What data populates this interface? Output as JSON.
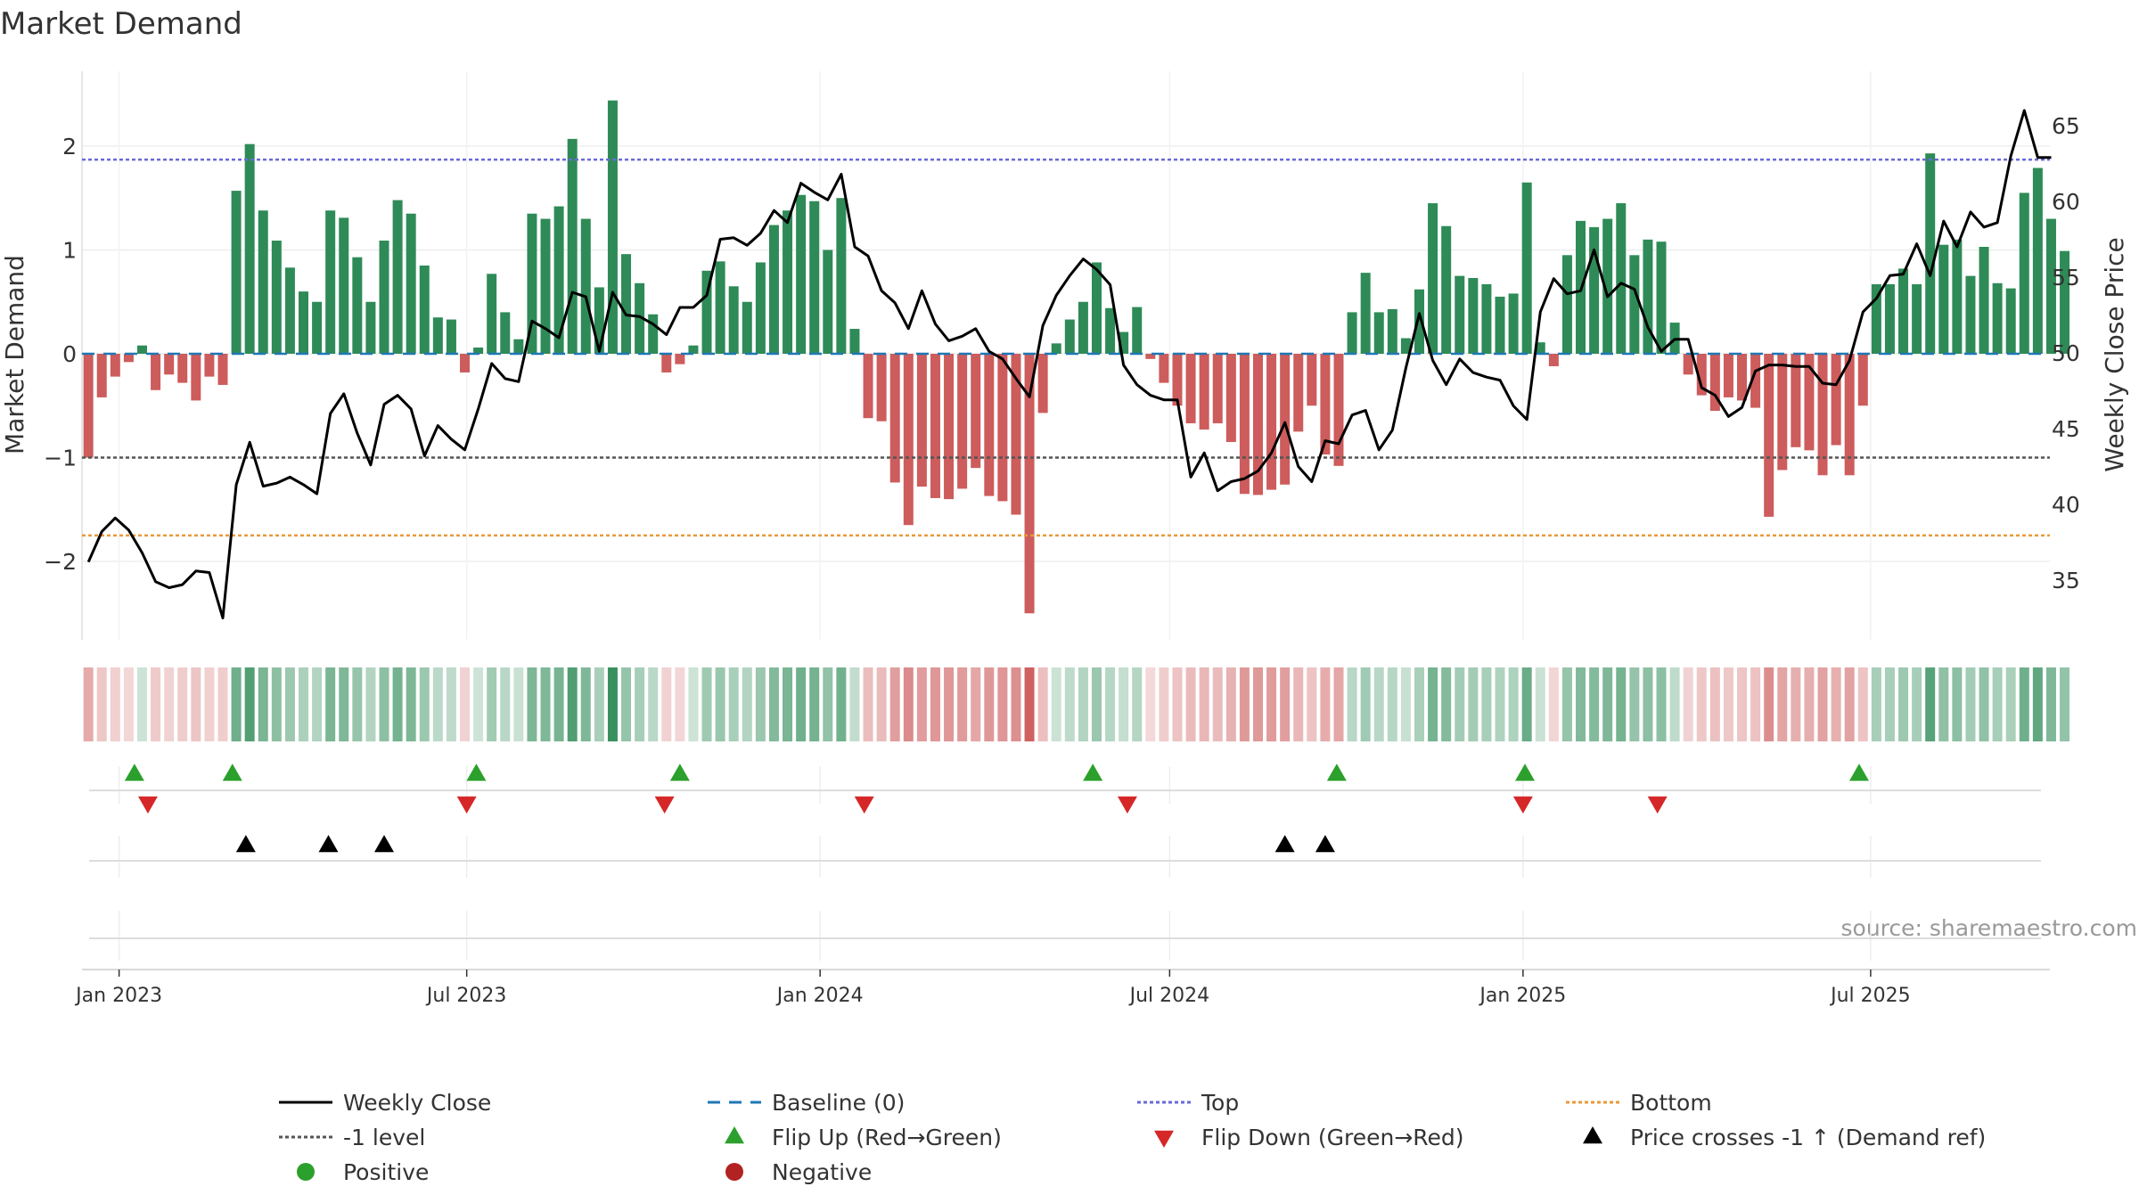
{
  "chart_data": {
    "type": "bar+line",
    "title": "Market Demand",
    "ylabel": "Market Demand",
    "y2label": "Weekly Close Price",
    "source": "source: sharemaestro.com",
    "ylim": [
      -2.75,
      2.75
    ],
    "y2lim": [
      31.5,
      69
    ],
    "yticks": [
      "2",
      "1",
      "0",
      "−1",
      "−2"
    ],
    "yticks_values": [
      2,
      1,
      0,
      -1,
      -2
    ],
    "y2ticks": [
      "65",
      "60",
      "55",
      "50",
      "45",
      "40",
      "35"
    ],
    "y2ticks_values": [
      65,
      60,
      55,
      50,
      45,
      40,
      35
    ],
    "date_start": "2022-12-16",
    "week_days": 7,
    "x_min": "2022-12-15",
    "x_max": "2025-09-30",
    "xticks": [
      {
        "label": "Jan 2023",
        "date": "2023-01-01"
      },
      {
        "label": "Jul 2023",
        "date": "2023-07-01"
      },
      {
        "label": "Jan 2024",
        "date": "2024-01-01"
      },
      {
        "label": "Jul 2024",
        "date": "2024-07-01"
      },
      {
        "label": "Jan 2025",
        "date": "2025-01-01"
      },
      {
        "label": "Jul 2025",
        "date": "2025-07-01"
      }
    ],
    "reference_lines": {
      "top": 1.87,
      "bottom": -1.75,
      "minus_one": -1.0,
      "baseline": 0
    },
    "colors": {
      "positive": "#2e8b57",
      "negative": "#cd5c5c",
      "price": "#000000",
      "top": "#6a6ad8",
      "bottom": "#e89a3c",
      "minus_one": "#555555",
      "baseline": "#1f77b4",
      "flip_up": "#2ca02c",
      "flip_down": "#d62728",
      "cross": "#000000",
      "dot_positive": "#2ca02c",
      "dot_negative": "#b22222"
    },
    "series": [
      {
        "name": "Market Demand",
        "type": "bar",
        "values": [
          -1.0,
          -0.42,
          -0.22,
          -0.08,
          0.08,
          -0.35,
          -0.2,
          -0.28,
          -0.45,
          -0.22,
          -0.3,
          1.57,
          2.02,
          1.38,
          1.09,
          0.83,
          0.6,
          0.5,
          1.38,
          1.31,
          0.93,
          0.5,
          1.09,
          1.48,
          1.35,
          0.85,
          0.35,
          0.33,
          -0.18,
          0.06,
          0.77,
          0.4,
          0.14,
          1.35,
          1.3,
          1.42,
          2.07,
          1.3,
          0.64,
          2.44,
          0.96,
          0.68,
          0.38,
          -0.18,
          -0.1,
          0.08,
          0.8,
          0.89,
          0.65,
          0.5,
          0.88,
          1.24,
          1.38,
          1.53,
          1.47,
          1.0,
          1.5,
          0.24,
          -0.62,
          -0.65,
          -1.24,
          -1.65,
          -1.28,
          -1.39,
          -1.4,
          -1.3,
          -1.1,
          -1.37,
          -1.42,
          -1.55,
          -2.5,
          -0.57,
          0.1,
          0.33,
          0.5,
          0.88,
          0.44,
          0.21,
          0.45,
          -0.05,
          -0.28,
          -0.5,
          -0.67,
          -0.73,
          -0.67,
          -0.85,
          -1.35,
          -1.36,
          -1.31,
          -1.26,
          -0.75,
          -0.5,
          -0.97,
          -1.08,
          0.4,
          0.78,
          0.4,
          0.43,
          0.15,
          0.62,
          1.45,
          1.23,
          0.75,
          0.73,
          0.67,
          0.55,
          0.58,
          1.65,
          0.11,
          -0.12,
          0.95,
          1.28,
          1.22,
          1.3,
          1.45,
          0.95,
          1.1,
          1.08,
          0.3,
          -0.2,
          -0.4,
          -0.55,
          -0.42,
          -0.45,
          -0.52,
          -1.57,
          -1.12,
          -0.9,
          -0.93,
          -1.17,
          -0.88,
          -1.17,
          -0.5,
          0.67,
          0.67,
          0.82,
          0.67,
          1.93,
          1.05,
          1.1,
          0.75,
          1.03,
          0.68,
          0.63,
          1.55,
          1.79,
          1.3,
          0.99
        ]
      },
      {
        "name": "Weekly Close",
        "type": "line",
        "axis": "right",
        "values": [
          36.2,
          38.2,
          39.1,
          38.3,
          36.8,
          34.9,
          34.5,
          34.7,
          35.6,
          35.5,
          32.5,
          41.3,
          44.1,
          41.2,
          41.4,
          41.8,
          41.3,
          40.7,
          46.0,
          47.3,
          44.7,
          42.6,
          46.6,
          47.2,
          46.3,
          43.2,
          45.2,
          44.3,
          43.6,
          46.3,
          49.3,
          48.3,
          48.1,
          52.1,
          51.6,
          51.0,
          54.0,
          53.7,
          50.1,
          54.0,
          52.5,
          52.4,
          51.9,
          51.2,
          53.0,
          53.0,
          53.8,
          57.5,
          57.6,
          57.1,
          57.9,
          59.4,
          58.6,
          61.2,
          60.6,
          60.1,
          61.8,
          57.0,
          56.4,
          54.1,
          53.3,
          51.6,
          54.1,
          51.9,
          50.8,
          51.1,
          51.6,
          50.1,
          49.6,
          48.3,
          47.1,
          51.8,
          53.8,
          55.1,
          56.2,
          55.5,
          54.5,
          49.2,
          47.9,
          47.2,
          46.9,
          46.9,
          41.8,
          43.4,
          40.9,
          41.5,
          41.7,
          42.2,
          43.4,
          45.4,
          42.5,
          41.5,
          44.2,
          44.0,
          45.9,
          46.2,
          43.6,
          44.9,
          49.0,
          52.6,
          49.5,
          47.9,
          49.6,
          48.7,
          48.4,
          48.2,
          46.5,
          45.6,
          52.7,
          54.9,
          53.9,
          54.1,
          56.8,
          53.7,
          54.6,
          54.2,
          51.7,
          50.1,
          50.9,
          50.9,
          47.7,
          47.2,
          45.8,
          46.4,
          48.8,
          49.2,
          49.2,
          49.1,
          49.1,
          48.0,
          47.9,
          49.5,
          52.7,
          53.6,
          55.1,
          55.2,
          57.2,
          55.1,
          58.7,
          57.0,
          59.3,
          58.3,
          58.6,
          63.0,
          66.0,
          62.9,
          62.9
        ]
      }
    ],
    "flip_up_dates": [
      "2023-01-09",
      "2023-03-01",
      "2023-07-06",
      "2023-10-20",
      "2024-05-22",
      "2024-09-26",
      "2025-01-02",
      "2025-06-25"
    ],
    "flip_down_dates": [
      "2023-01-16",
      "2023-07-01",
      "2023-10-12",
      "2024-01-24",
      "2024-06-09",
      "2025-01-01",
      "2025-03-12"
    ],
    "cross_up_dates": [
      "2023-03-08",
      "2023-04-20",
      "2023-05-19",
      "2024-08-30",
      "2024-09-20"
    ],
    "legend": [
      {
        "label": "Weekly Close",
        "kind": "line",
        "color": "#000000",
        "dash": ""
      },
      {
        "label": "Baseline (0)",
        "kind": "line",
        "color": "#1f77b4",
        "dash": "14 10"
      },
      {
        "label": "Top",
        "kind": "line",
        "color": "#6a6ad8",
        "dash": "4 3"
      },
      {
        "label": "Bottom",
        "kind": "line",
        "color": "#e89a3c",
        "dash": "4 3"
      },
      {
        "label": "-1 level",
        "kind": "line",
        "color": "#555555",
        "dash": "4 3"
      },
      {
        "label": "Flip Up (Red→Green)",
        "kind": "tri-up",
        "color": "#2ca02c"
      },
      {
        "label": "Flip Down (Green→Red)",
        "kind": "tri-down",
        "color": "#d62728"
      },
      {
        "label": "Price crosses -1 ↑ (Demand ref)",
        "kind": "tri-up",
        "color": "#000000"
      },
      {
        "label": "Positive",
        "kind": "dot",
        "color": "#2ca02c"
      },
      {
        "label": "Negative",
        "kind": "dot",
        "color": "#b22222"
      }
    ]
  }
}
